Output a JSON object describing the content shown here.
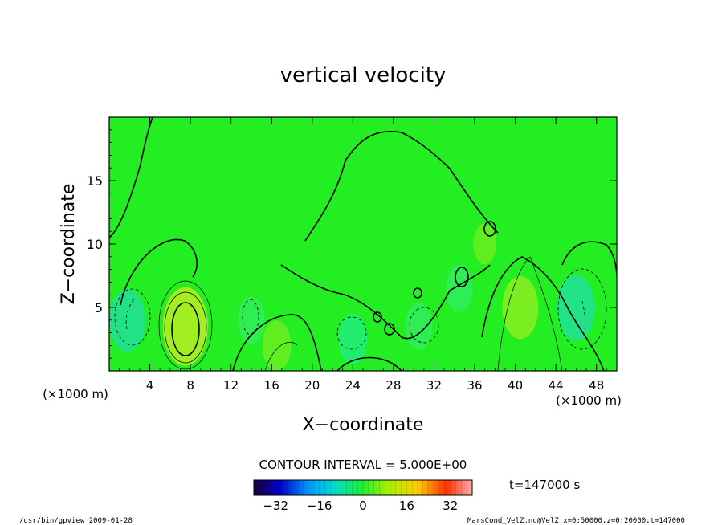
{
  "chart_data": {
    "type": "heatmap",
    "title": "vertical velocity",
    "xlabel": "X−coordinate",
    "ylabel": "Z−coordinate",
    "x_unit": "(×1000 m)",
    "y_unit": "(×1000 m)",
    "xlim": [
      0,
      50
    ],
    "ylim": [
      0,
      20
    ],
    "x_ticks": [
      4,
      8,
      12,
      16,
      20,
      24,
      28,
      32,
      36,
      40,
      44,
      48
    ],
    "x_tick_labels": [
      "4",
      "8",
      "12",
      "16",
      "20",
      "24",
      "28",
      "32",
      "36",
      "40",
      "44",
      "48"
    ],
    "y_ticks": [
      5,
      10,
      15
    ],
    "y_tick_labels": [
      "5",
      "10",
      "15"
    ],
    "contour_interval": "CONTOUR INTERVAL = 5.000E+00",
    "time_label": "t=147000 s",
    "colorbar": {
      "range": [
        -40,
        40
      ],
      "ticks": [
        -32,
        -16,
        0,
        16,
        32
      ],
      "tick_labels": [
        "−32",
        "−16",
        "0",
        "16",
        "32"
      ]
    },
    "features": [
      {
        "x": 7.5,
        "z": 3.5,
        "value": 15,
        "sign": "updraft"
      },
      {
        "x": 1.8,
        "z": 4.0,
        "value": -10,
        "sign": "downdraft"
      },
      {
        "x": 14.0,
        "z": 4.0,
        "value": -5,
        "sign": "downdraft"
      },
      {
        "x": 16.5,
        "z": 2.0,
        "value": 6,
        "sign": "updraft"
      },
      {
        "x": 24.0,
        "z": 2.5,
        "value": -6,
        "sign": "downdraft"
      },
      {
        "x": 30.5,
        "z": 3.5,
        "value": -5,
        "sign": "downdraft"
      },
      {
        "x": 34.5,
        "z": 6.5,
        "value": -5,
        "sign": "downdraft"
      },
      {
        "x": 40.5,
        "z": 5.0,
        "value": 10,
        "sign": "updraft"
      },
      {
        "x": 46.0,
        "z": 5.0,
        "value": -11,
        "sign": "downdraft"
      },
      {
        "x": 37.0,
        "z": 10.0,
        "value": 3,
        "sign": "updraft"
      }
    ]
  },
  "footer": {
    "left": "/usr/bin/gpview   2009-01-28",
    "right": "MarsCond_VelZ.nc@VelZ,x=0:50000,z=0:20000,t=147000"
  }
}
